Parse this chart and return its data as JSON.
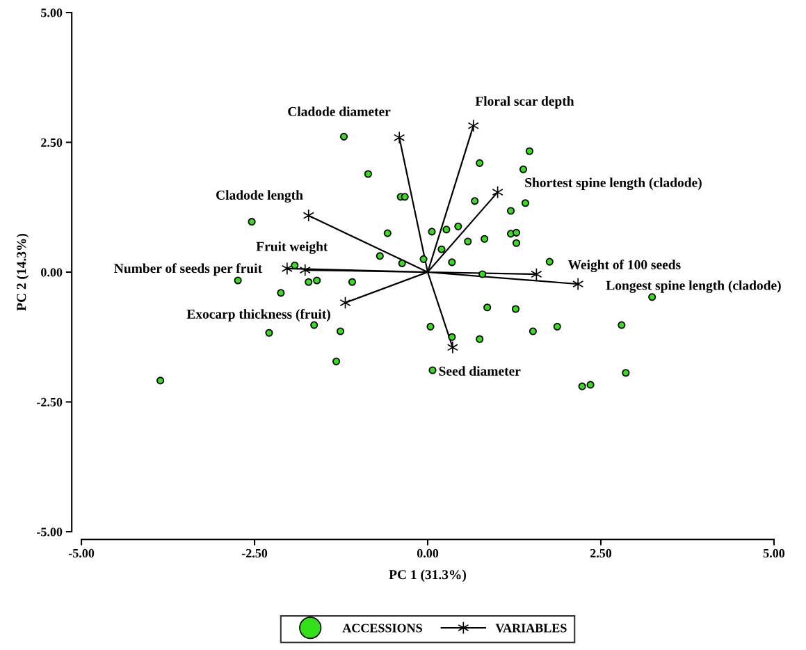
{
  "chart_data": {
    "type": "scatter",
    "xlabel": "PC 1 (31.3%)",
    "ylabel": "PC 2 (14.3%)",
    "xlim": [
      -5,
      5
    ],
    "ylim": [
      -5,
      5
    ],
    "xticks": [
      {
        "value": -5,
        "label": "-5.00"
      },
      {
        "value": -2.5,
        "label": "-2.50"
      },
      {
        "value": 0,
        "label": "0.00"
      },
      {
        "value": 2.5,
        "label": "2.50"
      },
      {
        "value": 5,
        "label": "5.00"
      }
    ],
    "yticks": [
      {
        "value": -5,
        "label": "-5.00"
      },
      {
        "value": -2.5,
        "label": "-2.50"
      },
      {
        "value": 0,
        "label": "0.00"
      },
      {
        "value": 2.5,
        "label": "2.50"
      },
      {
        "value": 5,
        "label": "5.00"
      }
    ],
    "grid": false,
    "legend": "bottom",
    "series": [
      {
        "name": "ACCESSIONS",
        "marker": "circle",
        "color": "#33e01a",
        "x": [
          -1.21,
          -0.86,
          -0.39,
          -0.33,
          -2.54,
          -0.58,
          0.06,
          -0.69,
          -0.37,
          -0.06,
          -1.92,
          -2.74,
          -1.72,
          -1.6,
          -1.09,
          -2.12,
          -1.64,
          -2.29,
          -1.26,
          -1.32,
          -3.86,
          0.04,
          0.07,
          1.47,
          0.75,
          1.38,
          0.68,
          1.41,
          1.2,
          0.27,
          0.44,
          1.2,
          1.28,
          1.28,
          0.58,
          0.82,
          0.2,
          0.35,
          1.76,
          0.79,
          3.24,
          0.86,
          1.27,
          0.35,
          0.75,
          1.52,
          1.87,
          2.8,
          2.86,
          2.23,
          2.35
        ],
        "values": [
          2.61,
          1.89,
          1.45,
          1.45,
          0.97,
          0.75,
          0.78,
          0.31,
          0.17,
          0.25,
          0.13,
          -0.16,
          -0.19,
          -0.16,
          -0.19,
          -0.4,
          -1.02,
          -1.17,
          -1.14,
          -1.72,
          -2.09,
          -1.05,
          -1.89,
          2.33,
          2.1,
          1.98,
          1.37,
          1.33,
          1.18,
          0.82,
          0.88,
          0.74,
          0.76,
          0.56,
          0.59,
          0.64,
          0.44,
          0.19,
          0.2,
          -0.04,
          -0.48,
          -0.68,
          -0.71,
          -1.25,
          -1.29,
          -1.14,
          -1.05,
          -1.02,
          -1.94,
          -2.2,
          -2.17
        ]
      },
      {
        "name": "VARIABLES",
        "type": "line",
        "marker": "cross",
        "line_style": "solid",
        "color": "#000000",
        "x": [
          0,
          -0.41,
          null,
          0,
          0.66,
          null,
          0,
          1.01,
          null,
          0,
          -1.72,
          null,
          0,
          -2.03,
          null,
          0,
          -1.77,
          null,
          0,
          -1.19,
          null,
          0,
          0.36,
          null,
          0,
          1.57,
          null,
          0,
          2.17
        ],
        "values": [
          0,
          2.59,
          null,
          0,
          2.82,
          null,
          0,
          1.54,
          null,
          0,
          1.09,
          null,
          0,
          0.07,
          null,
          0,
          0.04,
          null,
          0,
          -0.59,
          null,
          0,
          -1.45,
          null,
          0,
          -0.04,
          null,
          0,
          -0.23
        ]
      }
    ],
    "annotations": [
      "Cladode diameter",
      "Floral scar depth",
      "Shortest spine length (cladode)",
      "Cladode length",
      "Fruit weight",
      "Number of seeds per fruit",
      "Exocarp thickness (fruit)",
      "Seed diameter",
      "Weight of 100 seeds",
      "Longest spine length (cladode)"
    ]
  }
}
